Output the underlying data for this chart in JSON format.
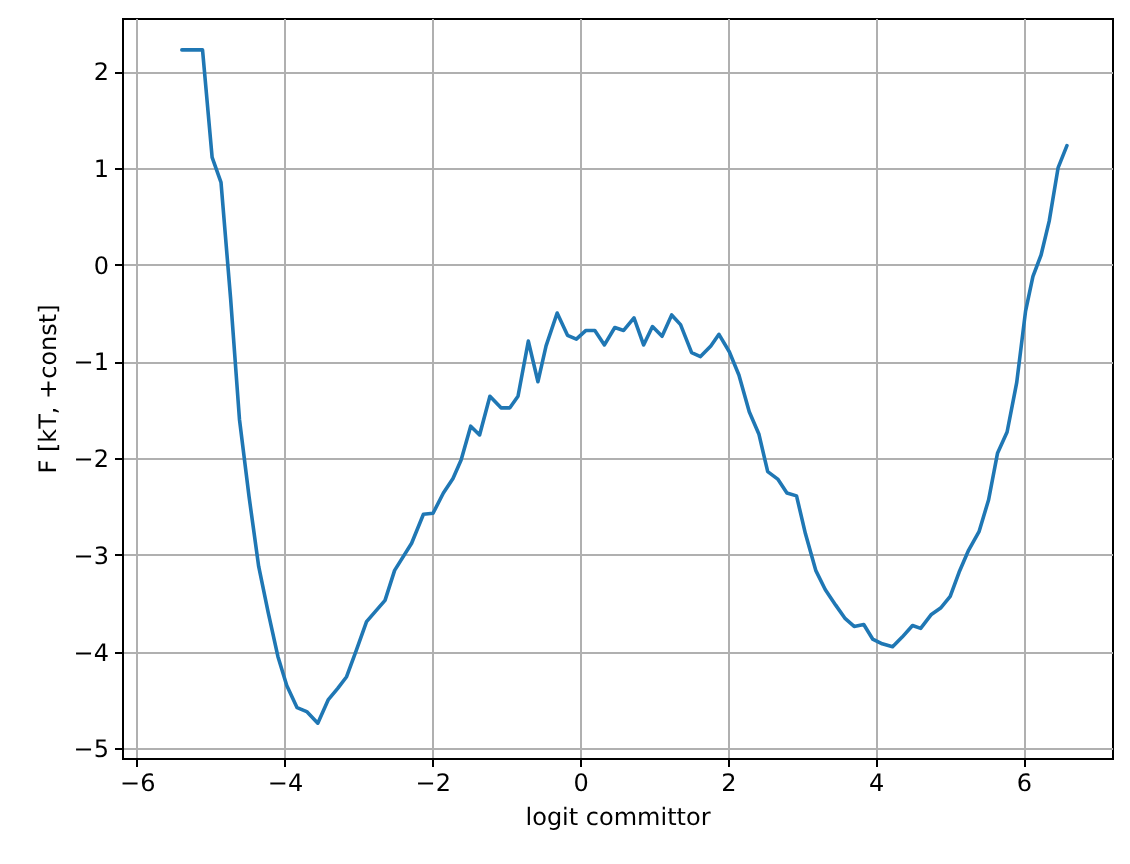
{
  "chart_data": {
    "type": "line",
    "xlabel": "logit committor",
    "ylabel": "F [kT, +const]",
    "x": [
      -5.39,
      -5.11,
      -4.98,
      -4.86,
      -4.73,
      -4.61,
      -4.48,
      -4.35,
      -4.22,
      -4.09,
      -3.97,
      -3.83,
      -3.7,
      -3.55,
      -3.41,
      -3.28,
      -3.16,
      -3.03,
      -2.89,
      -2.64,
      -2.51,
      -2.28,
      -2.12,
      -1.99,
      -1.85,
      -1.72,
      -1.61,
      -1.48,
      -1.36,
      -1.22,
      -1.07,
      -0.95,
      -0.84,
      -0.7,
      -0.57,
      -0.46,
      -0.31,
      -0.17,
      -0.05,
      0.08,
      0.2,
      0.33,
      0.47,
      0.59,
      0.73,
      0.86,
      0.98,
      1.11,
      1.24,
      1.36,
      1.51,
      1.63,
      1.77,
      1.88,
      2.02,
      2.15,
      2.29,
      2.42,
      2.54,
      2.68,
      2.8,
      2.93,
      3.05,
      3.19,
      3.32,
      3.46,
      3.59,
      3.71,
      3.84,
      3.96,
      4.09,
      4.23,
      4.36,
      4.5,
      4.61,
      4.75,
      4.88,
      5.01,
      5.13,
      5.26,
      5.4,
      5.53,
      5.65,
      5.78,
      5.91,
      6.03,
      6.13,
      6.24,
      6.35,
      6.47,
      6.59
    ],
    "series": [
      {
        "color": "#1f77b4",
        "values": [
          2.22,
          2.22,
          1.11,
          0.85,
          -0.35,
          -1.6,
          -2.4,
          -3.12,
          -3.6,
          -4.05,
          -4.35,
          -4.58,
          -4.62,
          -4.74,
          -4.5,
          -4.38,
          -4.26,
          -3.99,
          -3.69,
          -3.47,
          -3.16,
          -2.88,
          -2.58,
          -2.57,
          -2.36,
          -2.21,
          -2.02,
          -1.67,
          -1.76,
          -1.36,
          -1.48,
          -1.48,
          -1.36,
          -0.79,
          -1.21,
          -0.84,
          -0.5,
          -0.73,
          -0.77,
          -0.68,
          -0.68,
          -0.83,
          -0.65,
          -0.68,
          -0.55,
          -0.83,
          -0.64,
          -0.74,
          -0.52,
          -0.62,
          -0.91,
          -0.95,
          -0.84,
          -0.72,
          -0.9,
          -1.14,
          -1.52,
          -1.75,
          -2.14,
          -2.22,
          -2.36,
          -2.39,
          -2.78,
          -3.16,
          -3.36,
          -3.52,
          -3.66,
          -3.74,
          -3.72,
          -3.87,
          -3.92,
          -3.95,
          -3.85,
          -3.73,
          -3.76,
          -3.62,
          -3.55,
          -3.43,
          -3.18,
          -2.95,
          -2.76,
          -2.43,
          -1.95,
          -1.73,
          -1.22,
          -0.48,
          -0.12,
          0.1,
          0.45,
          1.0,
          1.23
        ]
      }
    ],
    "xlim": [
      -6.2,
      7.2
    ],
    "ylim": [
      -5.1,
      2.55
    ],
    "xticks": [
      -6,
      -4,
      -2,
      0,
      2,
      4,
      6
    ],
    "yticks": [
      -5,
      -4,
      -3,
      -2,
      -1,
      0,
      1,
      2
    ],
    "grid": true,
    "line_style": "solid"
  }
}
